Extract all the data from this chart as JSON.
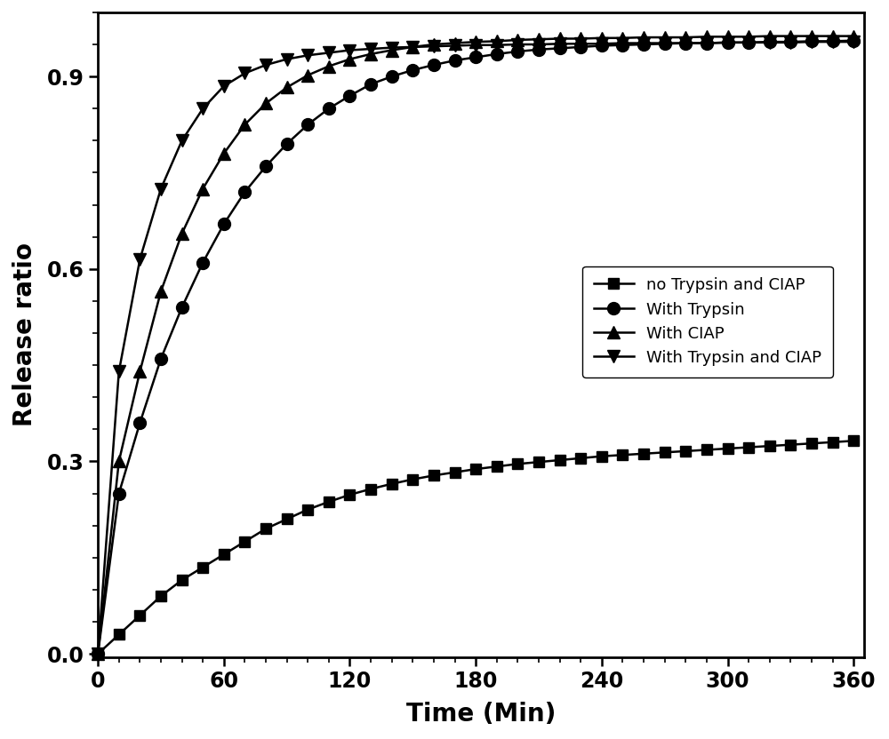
{
  "title": "",
  "xlabel": "Time (Min)",
  "ylabel": "Release ratio",
  "xlim": [
    0,
    365
  ],
  "ylim": [
    -0.005,
    1.0
  ],
  "xticks": [
    0,
    60,
    120,
    180,
    240,
    300,
    360
  ],
  "yticks": [
    0.0,
    0.3,
    0.6,
    0.9
  ],
  "background_color": "#ffffff",
  "series": [
    {
      "label": "no Trypsin and CIAP",
      "color": "#000000",
      "marker": "s",
      "markersize": 8,
      "linewidth": 1.8,
      "x": [
        0,
        10,
        20,
        30,
        40,
        50,
        60,
        70,
        80,
        90,
        100,
        110,
        120,
        130,
        140,
        150,
        160,
        170,
        180,
        190,
        200,
        210,
        220,
        230,
        240,
        250,
        260,
        270,
        280,
        290,
        300,
        310,
        320,
        330,
        340,
        350,
        360
      ],
      "y": [
        0.0,
        0.03,
        0.06,
        0.09,
        0.115,
        0.135,
        0.155,
        0.175,
        0.195,
        0.21,
        0.225,
        0.237,
        0.248,
        0.257,
        0.265,
        0.272,
        0.278,
        0.283,
        0.288,
        0.292,
        0.296,
        0.299,
        0.302,
        0.305,
        0.308,
        0.31,
        0.312,
        0.314,
        0.316,
        0.318,
        0.32,
        0.322,
        0.324,
        0.326,
        0.328,
        0.33,
        0.332
      ]
    },
    {
      "label": "With Trypsin",
      "color": "#000000",
      "marker": "o",
      "markersize": 10,
      "linewidth": 1.8,
      "x": [
        0,
        10,
        20,
        30,
        40,
        50,
        60,
        70,
        80,
        90,
        100,
        110,
        120,
        130,
        140,
        150,
        160,
        170,
        180,
        190,
        200,
        210,
        220,
        230,
        240,
        250,
        260,
        270,
        280,
        290,
        300,
        310,
        320,
        330,
        340,
        350,
        360
      ],
      "y": [
        0.0,
        0.25,
        0.36,
        0.46,
        0.54,
        0.61,
        0.67,
        0.72,
        0.76,
        0.795,
        0.825,
        0.85,
        0.87,
        0.888,
        0.9,
        0.91,
        0.918,
        0.925,
        0.93,
        0.935,
        0.939,
        0.942,
        0.944,
        0.946,
        0.948,
        0.949,
        0.95,
        0.951,
        0.952,
        0.952,
        0.953,
        0.953,
        0.954,
        0.954,
        0.955,
        0.955,
        0.956
      ]
    },
    {
      "label": "With CIAP",
      "color": "#000000",
      "marker": "^",
      "markersize": 10,
      "linewidth": 1.8,
      "x": [
        0,
        10,
        20,
        30,
        40,
        50,
        60,
        70,
        80,
        90,
        100,
        110,
        120,
        130,
        140,
        150,
        160,
        170,
        180,
        190,
        200,
        210,
        220,
        230,
        240,
        250,
        260,
        270,
        280,
        290,
        300,
        310,
        320,
        330,
        340,
        350,
        360
      ],
      "y": [
        0.0,
        0.3,
        0.44,
        0.565,
        0.655,
        0.725,
        0.78,
        0.825,
        0.858,
        0.883,
        0.902,
        0.916,
        0.927,
        0.935,
        0.941,
        0.946,
        0.95,
        0.952,
        0.954,
        0.955,
        0.957,
        0.958,
        0.959,
        0.959,
        0.96,
        0.96,
        0.961,
        0.961,
        0.961,
        0.962,
        0.962,
        0.962,
        0.963,
        0.963,
        0.963,
        0.963,
        0.963
      ]
    },
    {
      "label": "With Trypsin and CIAP",
      "color": "#000000",
      "marker": "v",
      "markersize": 10,
      "linewidth": 1.8,
      "x": [
        0,
        10,
        20,
        30,
        40,
        50,
        60,
        70,
        80,
        90,
        100,
        110,
        120,
        130,
        140,
        150,
        160,
        170,
        180,
        190,
        200,
        210,
        220,
        230,
        240,
        250,
        260,
        270,
        280,
        290,
        300,
        310,
        320,
        330,
        340,
        350,
        360
      ],
      "y": [
        0.0,
        0.44,
        0.615,
        0.725,
        0.8,
        0.85,
        0.885,
        0.905,
        0.918,
        0.927,
        0.933,
        0.937,
        0.941,
        0.943,
        0.945,
        0.946,
        0.947,
        0.948,
        0.949,
        0.949,
        0.95,
        0.95,
        0.951,
        0.951,
        0.951,
        0.952,
        0.952,
        0.952,
        0.952,
        0.952,
        0.953,
        0.953,
        0.953,
        0.953,
        0.954,
        0.954,
        0.954
      ]
    }
  ]
}
